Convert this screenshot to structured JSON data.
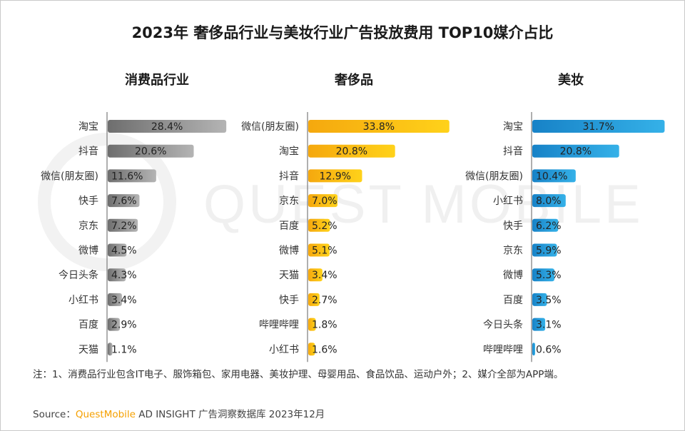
{
  "title": "2023年 奢侈品行业与美妆行业广告投放费用 TOP10媒介占比",
  "watermark": "QUEST MOBILE",
  "note": "注：1、消费品行业包含IT电子、服饰箱包、家用电器、美妆护理、母婴用品、食品饮品、运动户外；2、媒介全部为APP端。",
  "source": {
    "prefix": "Source：",
    "brand": "QuestMobile",
    "suffix": " AD INSIGHT 广告洞察数据库 2023年12月"
  },
  "colors": {
    "panel1": [
      "#6e6e6e",
      "#b4b4b4"
    ],
    "panel2": [
      "#f5a80e",
      "#ffd21a"
    ],
    "panel3": [
      "#1782c7",
      "#35b1e8"
    ],
    "brand": "#f5a000"
  },
  "chart_data": [
    {
      "type": "bar",
      "orientation": "horizontal",
      "title": "消费品行业",
      "categories": [
        "淘宝",
        "抖音",
        "微信(朋友圈)",
        "快手",
        "京东",
        "微博",
        "今日头条",
        "小红书",
        "百度",
        "天猫"
      ],
      "values": [
        28.4,
        20.6,
        11.6,
        7.6,
        7.2,
        4.5,
        4.3,
        3.4,
        2.9,
        1.1
      ],
      "labels": [
        "28.4%",
        "20.6%",
        "11.6%",
        "7.6%",
        "7.2%",
        "4.5%",
        "4.3%",
        "3.4%",
        "2.9%",
        "1.1%"
      ],
      "unit": "%"
    },
    {
      "type": "bar",
      "orientation": "horizontal",
      "title": "奢侈品",
      "categories": [
        "微信(朋友圈)",
        "淘宝",
        "抖音",
        "京东",
        "百度",
        "微博",
        "天猫",
        "快手",
        "哔哩哔哩",
        "小红书"
      ],
      "values": [
        33.8,
        20.8,
        12.9,
        7.0,
        5.2,
        5.1,
        3.4,
        2.7,
        1.8,
        1.6
      ],
      "labels": [
        "33.8%",
        "20.8%",
        "12.9%",
        "7.0%",
        "5.2%",
        "5.1%",
        "3.4%",
        "2.7%",
        "1.8%",
        "1.6%"
      ],
      "unit": "%"
    },
    {
      "type": "bar",
      "orientation": "horizontal",
      "title": "美妆",
      "categories": [
        "淘宝",
        "抖音",
        "微信(朋友圈)",
        "小红书",
        "快手",
        "京东",
        "微博",
        "百度",
        "今日头条",
        "哔哩哔哩"
      ],
      "values": [
        31.7,
        20.8,
        10.4,
        8.0,
        6.2,
        5.9,
        5.3,
        3.5,
        3.1,
        0.6
      ],
      "labels": [
        "31.7%",
        "20.8%",
        "10.4%",
        "8.0%",
        "6.2%",
        "5.9%",
        "5.3%",
        "3.5%",
        "3.1%",
        "0.6%"
      ],
      "unit": "%"
    }
  ]
}
